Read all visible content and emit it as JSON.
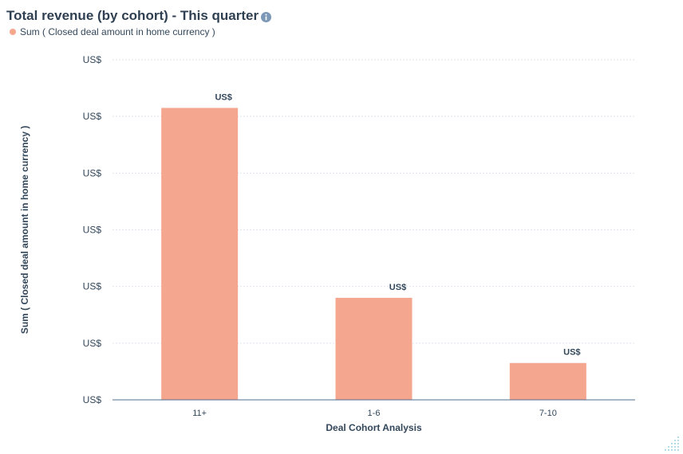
{
  "header": {
    "title": "Total revenue (by cohort) - This quarter",
    "info_icon": "info-icon"
  },
  "legend": {
    "label": "Sum ( Closed deal amount in home currency )"
  },
  "colors": {
    "bar": "#f5a68e",
    "title": "#2f3f52",
    "text": "#33475b",
    "grid": "#dfe3eb",
    "axis": "#516f90",
    "info": "#7c98b6"
  },
  "chart_data": {
    "type": "bar",
    "categories": [
      "11+",
      "1-6",
      "7-10"
    ],
    "values": [
      0.515,
      0.18,
      0.065
    ],
    "value_labels": [
      "US$",
      "US$",
      "US$"
    ],
    "y_tick_labels": [
      "US$",
      "US$",
      "US$",
      "US$",
      "US$",
      "US$",
      "US$"
    ],
    "ylim": [
      0,
      0.6
    ],
    "xlabel": "Deal Cohort Analysis",
    "ylabel": "Sum ( Closed deal amount in home currency )",
    "grid": true,
    "legend": "top-left"
  }
}
